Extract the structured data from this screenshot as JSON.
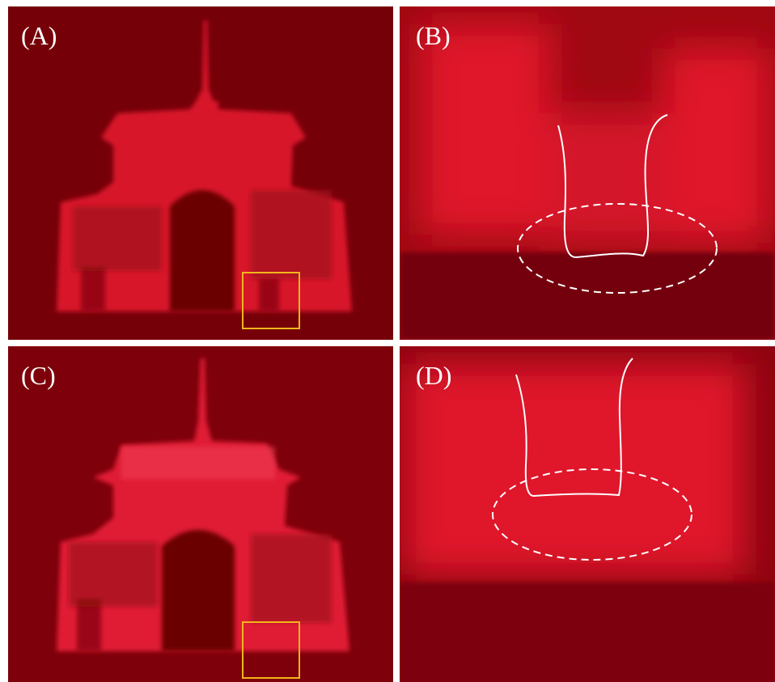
{
  "panels": [
    {
      "label": "(A)"
    },
    {
      "label": "(B)"
    },
    {
      "label": "(C)"
    },
    {
      "label": "(D)"
    }
  ]
}
